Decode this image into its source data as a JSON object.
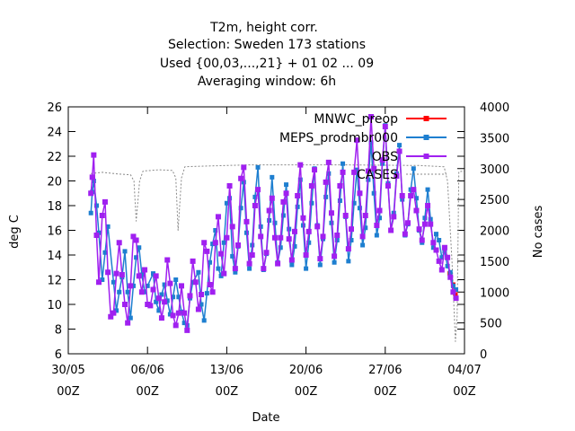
{
  "chart_data": {
    "type": "line",
    "title_lines": [
      "T2m, height corr.",
      "Selection: Sweden    173 stations",
      "Used {00,03,...,21} + 01 02 ... 09",
      "Averaging window:  6h"
    ],
    "xlabel": "Date",
    "ylabel": "deg C",
    "y2label": "No cases",
    "x_range_days": [
      0,
      35
    ],
    "ylim": [
      6,
      26
    ],
    "y2lim": [
      0,
      4000
    ],
    "x_ticks": [
      {
        "day": 0,
        "label": "30/05",
        "sub": "00Z"
      },
      {
        "day": 7,
        "label": "06/06",
        "sub": "00Z"
      },
      {
        "day": 14,
        "label": "13/06",
        "sub": "00Z"
      },
      {
        "day": 21,
        "label": "20/06",
        "sub": "00Z"
      },
      {
        "day": 28,
        "label": "27/06",
        "sub": "00Z"
      },
      {
        "day": 35,
        "label": "04/07",
        "sub": "00Z"
      }
    ],
    "y_ticks": [
      "6",
      "8",
      "10",
      "12",
      "14",
      "16",
      "18",
      "20",
      "22",
      "24",
      "26"
    ],
    "y2_ticks": [
      "0",
      "500",
      "1000",
      "1500",
      "2000",
      "2500",
      "3000",
      "3500",
      "4000"
    ],
    "grid": false,
    "legend_position": "top-right",
    "series": [
      {
        "name": "MNWC_preop",
        "color": "#ff0000",
        "axis": "left",
        "points": [
          [
            33.7,
            12.5
          ],
          [
            34.0,
            11.6
          ],
          [
            34.2,
            10.8
          ]
        ]
      },
      {
        "name": "MEPS_prodmbr000",
        "color": "#1e7fd0",
        "axis": "left",
        "points": [
          [
            2.0,
            17.4
          ],
          [
            2.12,
            19.1
          ],
          [
            2.25,
            20.0
          ],
          [
            2.5,
            18.0
          ],
          [
            2.7,
            15.8
          ],
          [
            3.0,
            12.0
          ],
          [
            3.25,
            14.2
          ],
          [
            3.5,
            16.3
          ],
          [
            4.0,
            11.8
          ],
          [
            4.25,
            9.5
          ],
          [
            4.5,
            11.0
          ],
          [
            4.75,
            12.2
          ],
          [
            5.0,
            14.3
          ],
          [
            5.25,
            11.0
          ],
          [
            5.5,
            8.9
          ],
          [
            5.75,
            11.5
          ],
          [
            6.0,
            13.8
          ],
          [
            6.25,
            14.6
          ],
          [
            6.5,
            12.4
          ],
          [
            6.75,
            11.0
          ],
          [
            7.0,
            11.5
          ],
          [
            7.5,
            12.5
          ],
          [
            7.75,
            10.2
          ],
          [
            8.0,
            9.5
          ],
          [
            8.25,
            10.8
          ],
          [
            8.5,
            11.6
          ],
          [
            8.75,
            10.3
          ],
          [
            9.0,
            9.2
          ],
          [
            9.25,
            10.6
          ],
          [
            9.5,
            12.0
          ],
          [
            9.75,
            10.6
          ],
          [
            10.0,
            9.4
          ],
          [
            10.25,
            8.5
          ],
          [
            10.5,
            8.3
          ],
          [
            10.75,
            10.5
          ],
          [
            11.0,
            11.8
          ],
          [
            11.5,
            12.6
          ],
          [
            11.75,
            10.0
          ],
          [
            12.0,
            8.7
          ],
          [
            12.25,
            10.9
          ],
          [
            12.5,
            13.4
          ],
          [
            12.75,
            14.9
          ],
          [
            13.0,
            16.0
          ],
          [
            13.25,
            12.9
          ],
          [
            13.5,
            12.3
          ],
          [
            13.75,
            15.0
          ],
          [
            14.0,
            18.2
          ],
          [
            14.25,
            18.6
          ],
          [
            14.5,
            13.9
          ],
          [
            14.75,
            12.6
          ],
          [
            15.0,
            14.7
          ],
          [
            15.25,
            17.8
          ],
          [
            15.5,
            19.9
          ],
          [
            15.75,
            15.8
          ],
          [
            16.0,
            12.9
          ],
          [
            16.25,
            14.8
          ],
          [
            16.5,
            18.7
          ],
          [
            16.75,
            21.1
          ],
          [
            17.0,
            16.3
          ],
          [
            17.25,
            12.8
          ],
          [
            17.5,
            14.1
          ],
          [
            17.75,
            16.8
          ],
          [
            18.0,
            20.3
          ],
          [
            18.25,
            16.6
          ],
          [
            18.5,
            13.4
          ],
          [
            18.75,
            14.6
          ],
          [
            19.0,
            17.2
          ],
          [
            19.25,
            19.7
          ],
          [
            19.5,
            16.1
          ],
          [
            19.75,
            13.2
          ],
          [
            20.0,
            14.7
          ],
          [
            20.25,
            17.9
          ],
          [
            20.5,
            20.1
          ],
          [
            20.75,
            16.4
          ],
          [
            21.0,
            12.9
          ],
          [
            21.25,
            15.0
          ],
          [
            21.5,
            18.2
          ],
          [
            21.75,
            21.0
          ],
          [
            22.0,
            16.4
          ],
          [
            22.25,
            13.2
          ],
          [
            22.5,
            15.3
          ],
          [
            22.75,
            18.7
          ],
          [
            23.0,
            20.6
          ],
          [
            23.25,
            16.6
          ],
          [
            23.5,
            13.4
          ],
          [
            23.75,
            15.2
          ],
          [
            24.0,
            18.4
          ],
          [
            24.25,
            21.4
          ],
          [
            24.5,
            17.1
          ],
          [
            24.75,
            13.5
          ],
          [
            25.0,
            15.2
          ],
          [
            25.25,
            18.2
          ],
          [
            25.5,
            20.9
          ],
          [
            25.75,
            17.8
          ],
          [
            26.0,
            14.8
          ],
          [
            26.25,
            16.2
          ],
          [
            26.5,
            20.1
          ],
          [
            26.75,
            23.1
          ],
          [
            27.0,
            19.0
          ],
          [
            27.25,
            15.6
          ],
          [
            27.5,
            17.0
          ],
          [
            27.75,
            21.4
          ],
          [
            28.0,
            24.5
          ],
          [
            28.25,
            19.8
          ],
          [
            28.5,
            16.0
          ],
          [
            28.75,
            17.4
          ],
          [
            29.0,
            20.6
          ],
          [
            29.25,
            22.9
          ],
          [
            29.5,
            18.5
          ],
          [
            29.75,
            15.6
          ],
          [
            30.0,
            16.5
          ],
          [
            30.25,
            19.3
          ],
          [
            30.5,
            21.0
          ],
          [
            30.75,
            18.6
          ],
          [
            31.0,
            16.0
          ],
          [
            31.25,
            15.0
          ],
          [
            31.5,
            17.0
          ],
          [
            31.75,
            19.3
          ],
          [
            32.0,
            16.9
          ],
          [
            32.25,
            14.6
          ],
          [
            32.5,
            15.7
          ],
          [
            32.75,
            15.2
          ],
          [
            33.0,
            13.8
          ],
          [
            33.25,
            14.3
          ],
          [
            33.5,
            13.1
          ],
          [
            33.75,
            12.6
          ],
          [
            34.0,
            11.5
          ],
          [
            34.25,
            11.2
          ]
        ]
      },
      {
        "name": "OBS",
        "color": "#a020f0",
        "axis": "left",
        "points": [
          [
            2.0,
            19.0
          ],
          [
            2.12,
            20.3
          ],
          [
            2.25,
            22.1
          ],
          [
            2.5,
            15.6
          ],
          [
            2.7,
            11.8
          ],
          [
            3.0,
            17.2
          ],
          [
            3.25,
            18.3
          ],
          [
            3.5,
            12.6
          ],
          [
            3.75,
            9.0
          ],
          [
            4.0,
            9.3
          ],
          [
            4.25,
            12.5
          ],
          [
            4.5,
            15.0
          ],
          [
            4.75,
            12.4
          ],
          [
            5.0,
            10.0
          ],
          [
            5.25,
            8.5
          ],
          [
            5.5,
            11.5
          ],
          [
            5.75,
            15.5
          ],
          [
            6.0,
            15.2
          ],
          [
            6.25,
            12.3
          ],
          [
            6.5,
            11.0
          ],
          [
            6.75,
            12.8
          ],
          [
            7.0,
            10.0
          ],
          [
            7.25,
            9.9
          ],
          [
            7.5,
            11.2
          ],
          [
            7.75,
            12.3
          ],
          [
            8.0,
            10.5
          ],
          [
            8.25,
            8.9
          ],
          [
            8.5,
            10.2
          ],
          [
            8.75,
            13.6
          ],
          [
            9.0,
            11.7
          ],
          [
            9.25,
            9.1
          ],
          [
            9.5,
            8.3
          ],
          [
            9.75,
            9.3
          ],
          [
            10.0,
            11.5
          ],
          [
            10.25,
            9.3
          ],
          [
            10.5,
            7.9
          ],
          [
            10.75,
            10.7
          ],
          [
            11.0,
            13.5
          ],
          [
            11.25,
            11.8
          ],
          [
            11.5,
            9.6
          ],
          [
            11.75,
            10.8
          ],
          [
            12.0,
            15.0
          ],
          [
            12.25,
            14.3
          ],
          [
            12.5,
            11.6
          ],
          [
            12.75,
            11.0
          ],
          [
            13.0,
            15.0
          ],
          [
            13.25,
            17.1
          ],
          [
            13.5,
            14.1
          ],
          [
            13.75,
            12.5
          ],
          [
            14.0,
            15.4
          ],
          [
            14.25,
            19.6
          ],
          [
            14.5,
            16.3
          ],
          [
            14.75,
            12.9
          ],
          [
            15.0,
            14.8
          ],
          [
            15.25,
            20.2
          ],
          [
            15.5,
            21.1
          ],
          [
            15.75,
            16.7
          ],
          [
            16.0,
            13.3
          ],
          [
            16.25,
            14.0
          ],
          [
            16.5,
            18.0
          ],
          [
            16.75,
            19.3
          ],
          [
            17.0,
            15.5
          ],
          [
            17.25,
            12.9
          ],
          [
            17.5,
            14.2
          ],
          [
            17.75,
            17.6
          ],
          [
            18.0,
            18.6
          ],
          [
            18.25,
            15.4
          ],
          [
            18.5,
            13.3
          ],
          [
            18.75,
            15.4
          ],
          [
            19.0,
            18.3
          ],
          [
            19.25,
            19.0
          ],
          [
            19.5,
            15.3
          ],
          [
            19.75,
            13.6
          ],
          [
            20.0,
            15.9
          ],
          [
            20.25,
            18.8
          ],
          [
            20.5,
            21.3
          ],
          [
            20.75,
            17.0
          ],
          [
            21.0,
            14.0
          ],
          [
            21.25,
            15.9
          ],
          [
            21.5,
            19.6
          ],
          [
            21.75,
            20.9
          ],
          [
            22.0,
            16.3
          ],
          [
            22.25,
            13.7
          ],
          [
            22.5,
            15.5
          ],
          [
            22.75,
            19.9
          ],
          [
            23.0,
            21.5
          ],
          [
            23.25,
            17.4
          ],
          [
            23.5,
            13.9
          ],
          [
            23.75,
            15.6
          ],
          [
            24.0,
            19.6
          ],
          [
            24.25,
            20.7
          ],
          [
            24.5,
            17.2
          ],
          [
            24.75,
            14.5
          ],
          [
            25.0,
            16.1
          ],
          [
            25.25,
            20.7
          ],
          [
            25.5,
            23.3
          ],
          [
            25.75,
            19.0
          ],
          [
            26.0,
            15.5
          ],
          [
            26.25,
            17.2
          ],
          [
            26.5,
            20.8
          ],
          [
            26.75,
            25.2
          ],
          [
            27.0,
            21.0
          ],
          [
            27.25,
            16.4
          ],
          [
            27.5,
            17.6
          ],
          [
            27.75,
            21.7
          ],
          [
            28.0,
            24.4
          ],
          [
            28.25,
            19.6
          ],
          [
            28.5,
            16.0
          ],
          [
            28.75,
            17.1
          ],
          [
            29.0,
            20.4
          ],
          [
            29.25,
            22.4
          ],
          [
            29.5,
            18.8
          ],
          [
            29.75,
            15.7
          ],
          [
            30.0,
            16.6
          ],
          [
            30.25,
            18.8
          ],
          [
            30.5,
            19.3
          ],
          [
            30.75,
            17.6
          ],
          [
            31.0,
            16.1
          ],
          [
            31.25,
            15.2
          ],
          [
            31.5,
            16.5
          ],
          [
            31.75,
            18.0
          ],
          [
            32.0,
            16.5
          ],
          [
            32.25,
            15.0
          ],
          [
            32.5,
            14.4
          ],
          [
            32.75,
            13.5
          ],
          [
            33.0,
            12.8
          ],
          [
            33.25,
            14.6
          ],
          [
            33.5,
            13.8
          ],
          [
            33.75,
            12.2
          ],
          [
            34.0,
            11.0
          ],
          [
            34.25,
            10.5
          ]
        ]
      },
      {
        "name": "CASES",
        "color": "#888888",
        "axis": "right",
        "dashed": true,
        "points": [
          [
            2.0,
            2920
          ],
          [
            3.0,
            2940
          ],
          [
            4.5,
            2910
          ],
          [
            5.5,
            2900
          ],
          [
            5.8,
            2800
          ],
          [
            6.0,
            2150
          ],
          [
            6.3,
            2800
          ],
          [
            6.6,
            2960
          ],
          [
            8.0,
            2980
          ],
          [
            9.2,
            2970
          ],
          [
            9.5,
            2850
          ],
          [
            9.7,
            2000
          ],
          [
            10.0,
            2850
          ],
          [
            10.3,
            3030
          ],
          [
            12.0,
            3040
          ],
          [
            14.0,
            3050
          ],
          [
            16.0,
            3060
          ],
          [
            20.0,
            3060
          ],
          [
            24.0,
            3060
          ],
          [
            28.0,
            3055
          ],
          [
            31.0,
            3050
          ],
          [
            33.2,
            3030
          ],
          [
            33.5,
            2800
          ],
          [
            33.9,
            1500
          ],
          [
            34.2,
            200
          ],
          [
            34.35,
            600
          ],
          [
            34.5,
            2950
          ],
          [
            35.0,
            2960
          ]
        ]
      }
    ]
  }
}
